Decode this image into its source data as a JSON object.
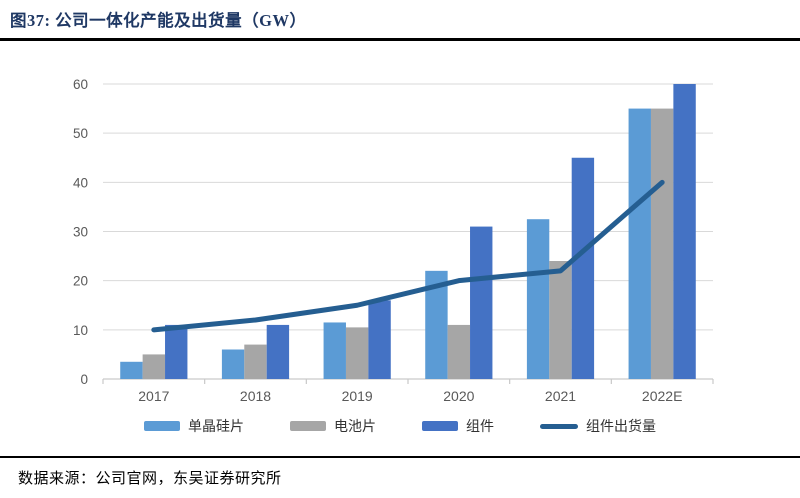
{
  "figure": {
    "title": "图37:  公司一体化产能及出货量（GW）",
    "source": "数据来源：公司官网，东吴证券研究所"
  },
  "chart_data": {
    "type": "bar",
    "subtype": "grouped-bars-with-line-overlay",
    "title": "公司一体化产能及出货量（GW）",
    "categories": [
      "2017",
      "2018",
      "2019",
      "2020",
      "2021",
      "2022E"
    ],
    "series": [
      {
        "key": "mono-wafer-capacity",
        "name": "单晶硅片",
        "type": "bar",
        "color": "#5B9BD5",
        "values": [
          3.5,
          6,
          11.5,
          22,
          32.5,
          55
        ]
      },
      {
        "key": "cell-capacity",
        "name": "电池片",
        "type": "bar",
        "color": "#A6A6A6",
        "values": [
          5,
          7,
          10.5,
          11,
          24,
          55
        ]
      },
      {
        "key": "module-capacity",
        "name": "组件",
        "type": "bar",
        "color": "#4472C4",
        "values": [
          11,
          11,
          16,
          31,
          45,
          60
        ]
      },
      {
        "key": "module-shipments",
        "name": "组件出货量",
        "type": "line",
        "color": "#255E91",
        "values": [
          10,
          12,
          15,
          20,
          22,
          40
        ]
      }
    ],
    "xlabel": "",
    "ylabel": "",
    "ylim": [
      0,
      60
    ],
    "yticks": [
      0,
      10,
      20,
      30,
      40,
      50,
      60
    ],
    "grid": true,
    "gridline_color": "#D9D9D9",
    "axis_color": "#C9C9C9",
    "tick_label_color": "#595959",
    "legend_position": "bottom"
  }
}
